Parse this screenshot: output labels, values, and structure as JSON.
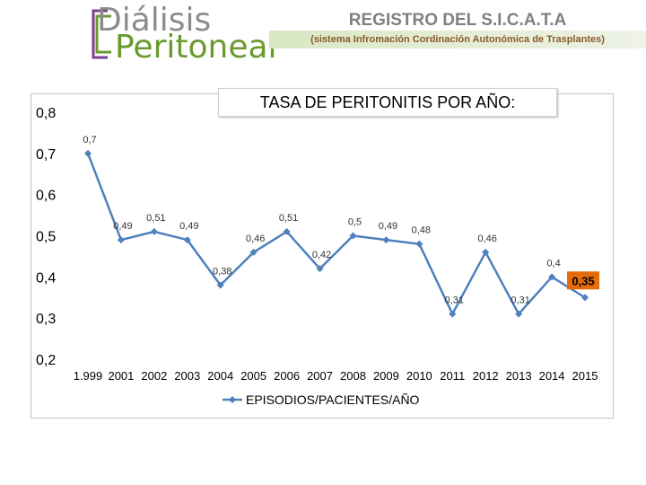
{
  "header": {
    "logo_line1": "Diálisis",
    "logo_line2": "Peritoneal",
    "title": "REGISTRO DEL S.I.C.A.T.A",
    "subtitle": "(sistema Infromación Cordinación Autonómica de Trasplantes)"
  },
  "colors": {
    "series": "#4f81bd",
    "highlight_label_bg": "#e46c0a",
    "logo_green": "#6a9a2e",
    "logo_purple": "#7b3f8c"
  },
  "chart_data": {
    "type": "line",
    "title": "TASA DE PERITONITIS POR AÑO:",
    "categories": [
      "1.999",
      "2001",
      "2002",
      "2003",
      "2004",
      "2005",
      "2006",
      "2007",
      "2008",
      "2009",
      "2010",
      "2011",
      "2012",
      "2013",
      "2014",
      "2015"
    ],
    "series": [
      {
        "name": "EPISODIOS/PACIENTES/AÑO",
        "values": [
          0.7,
          0.49,
          0.51,
          0.49,
          0.38,
          0.46,
          0.51,
          0.42,
          0.5,
          0.49,
          0.48,
          0.31,
          0.46,
          0.31,
          0.4,
          0.35
        ],
        "labels": [
          "0,7",
          "0,49",
          "0,51",
          "0,49",
          "0,38",
          "0,46",
          "0,51",
          "0,42",
          "0,5",
          "0,49",
          "0,48",
          "0,31",
          "0,46",
          "0,31",
          "0,4",
          "0,35"
        ]
      }
    ],
    "yticks": [
      "0,2",
      "0,3",
      "0,4",
      "0,5",
      "0,6",
      "0,7",
      "0,8"
    ],
    "ylim": [
      0.2,
      0.8
    ],
    "grid": false,
    "legend": "bottom",
    "highlight_index": 15
  }
}
